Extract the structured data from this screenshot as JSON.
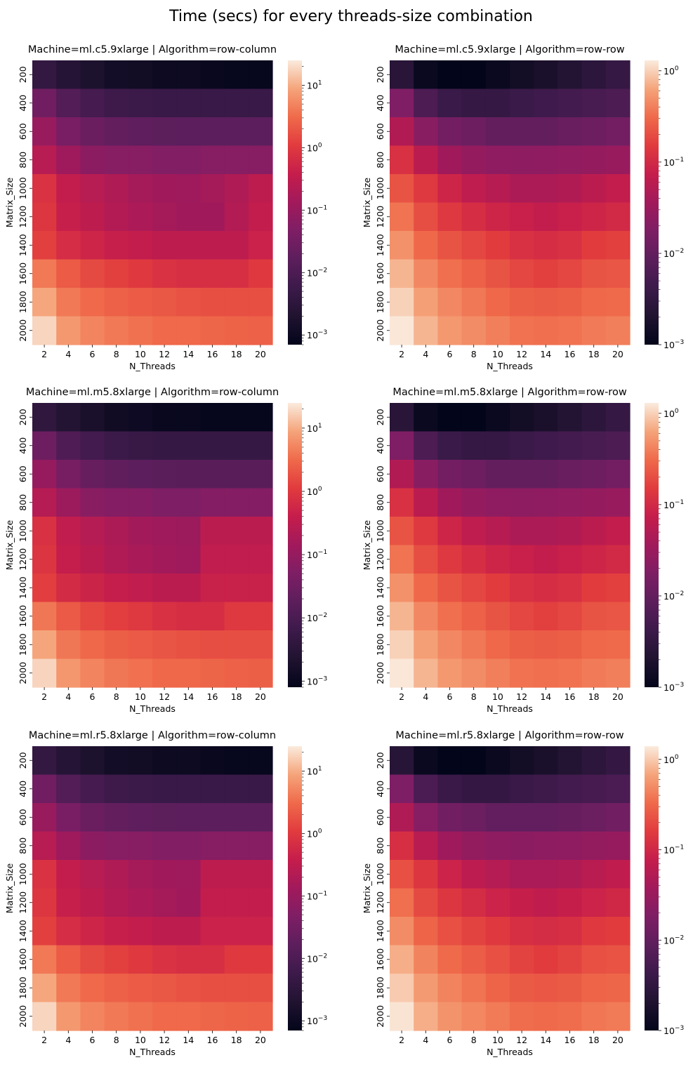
{
  "figure": {
    "suptitle": "Time (secs) for every threads-size combination"
  },
  "chart_data": [
    {
      "type": "heatmap",
      "title": "Machine=ml.c5.9xlarge | Algorithm=row-column",
      "xlabel": "N_Threads",
      "ylabel": "Matrix_Size",
      "x": [
        2,
        4,
        6,
        8,
        10,
        12,
        14,
        16,
        18,
        20
      ],
      "y": [
        200,
        400,
        600,
        800,
        1000,
        1200,
        1400,
        1600,
        1800,
        2000
      ],
      "color_scale": "log",
      "colormap": "rocket",
      "colorbar_range": [
        0.0007,
        25
      ],
      "colorbar_ticks": [
        {
          "value": 0.001,
          "label": "10",
          "exp": "−3"
        },
        {
          "value": 0.01,
          "label": "10",
          "exp": "−2"
        },
        {
          "value": 0.1,
          "label": "10",
          "exp": "−1"
        },
        {
          "value": 1,
          "label": "10",
          "exp": "0"
        },
        {
          "value": 10,
          "label": "10",
          "exp": "1"
        }
      ],
      "values": [
        [
          0.004,
          0.0025,
          0.0018,
          0.0013,
          0.0012,
          0.001,
          0.001,
          0.0009,
          0.0008,
          0.0008
        ],
        [
          0.03,
          0.012,
          0.008,
          0.006,
          0.0055,
          0.005,
          0.005,
          0.005,
          0.005,
          0.005
        ],
        [
          0.1,
          0.04,
          0.025,
          0.02,
          0.018,
          0.017,
          0.016,
          0.016,
          0.016,
          0.016
        ],
        [
          0.25,
          0.12,
          0.07,
          0.06,
          0.06,
          0.05,
          0.05,
          0.06,
          0.06,
          0.06
        ],
        [
          0.8,
          0.35,
          0.25,
          0.2,
          0.15,
          0.13,
          0.12,
          0.15,
          0.2,
          0.3
        ],
        [
          0.9,
          0.4,
          0.3,
          0.22,
          0.18,
          0.15,
          0.13,
          0.13,
          0.22,
          0.35
        ],
        [
          1.2,
          0.65,
          0.5,
          0.4,
          0.35,
          0.3,
          0.3,
          0.3,
          0.3,
          0.45
        ],
        [
          4.0,
          2.2,
          1.5,
          1.2,
          1.0,
          0.8,
          0.7,
          0.7,
          0.7,
          1.0
        ],
        [
          9.0,
          4.0,
          3.0,
          2.5,
          2.2,
          2.0,
          1.8,
          1.7,
          1.7,
          1.7
        ],
        [
          18.0,
          7.0,
          5.0,
          4.0,
          3.5,
          3.0,
          3.0,
          2.8,
          2.6,
          2.5
        ]
      ]
    },
    {
      "type": "heatmap",
      "title": "Machine=ml.c5.9xlarge | Algorithm=row-row",
      "xlabel": "N_Threads",
      "ylabel": "Matrix_Size",
      "x": [
        2,
        4,
        6,
        8,
        10,
        12,
        14,
        16,
        18,
        20
      ],
      "y": [
        200,
        400,
        600,
        800,
        1000,
        1200,
        1400,
        1600,
        1800,
        2000
      ],
      "color_scale": "log",
      "colormap": "rocket",
      "colorbar_range": [
        0.001,
        1.3
      ],
      "colorbar_ticks": [
        {
          "value": 0.001,
          "label": "10",
          "exp": "−3"
        },
        {
          "value": 0.01,
          "label": "10",
          "exp": "−2"
        },
        {
          "value": 0.1,
          "label": "10",
          "exp": "−1"
        },
        {
          "value": 1,
          "label": "10",
          "exp": "0"
        }
      ],
      "values": [
        [
          0.0025,
          0.0012,
          0.001,
          0.001,
          0.0012,
          0.0015,
          0.0018,
          0.0022,
          0.0028,
          0.0035
        ],
        [
          0.018,
          0.006,
          0.004,
          0.0035,
          0.0035,
          0.004,
          0.0045,
          0.005,
          0.0055,
          0.006
        ],
        [
          0.05,
          0.022,
          0.014,
          0.012,
          0.01,
          0.01,
          0.01,
          0.011,
          0.012,
          0.014
        ],
        [
          0.12,
          0.06,
          0.035,
          0.028,
          0.025,
          0.024,
          0.025,
          0.026,
          0.028,
          0.03
        ],
        [
          0.22,
          0.14,
          0.09,
          0.065,
          0.055,
          0.045,
          0.045,
          0.05,
          0.06,
          0.07
        ],
        [
          0.35,
          0.2,
          0.14,
          0.11,
          0.09,
          0.08,
          0.07,
          0.08,
          0.09,
          0.1
        ],
        [
          0.5,
          0.3,
          0.22,
          0.18,
          0.15,
          0.12,
          0.11,
          0.12,
          0.15,
          0.16
        ],
        [
          0.75,
          0.45,
          0.33,
          0.27,
          0.22,
          0.18,
          0.16,
          0.18,
          0.22,
          0.23
        ],
        [
          1.0,
          0.6,
          0.45,
          0.37,
          0.3,
          0.26,
          0.25,
          0.26,
          0.3,
          0.31
        ],
        [
          1.25,
          0.75,
          0.55,
          0.47,
          0.4,
          0.34,
          0.33,
          0.34,
          0.38,
          0.4
        ]
      ]
    },
    {
      "type": "heatmap",
      "title": "Machine=ml.m5.8xlarge | Algorithm=row-column",
      "xlabel": "N_Threads",
      "ylabel": "Matrix_Size",
      "x": [
        2,
        4,
        6,
        8,
        10,
        12,
        14,
        16,
        18,
        20
      ],
      "y": [
        200,
        400,
        600,
        800,
        1000,
        1200,
        1400,
        1600,
        1800,
        2000
      ],
      "color_scale": "log",
      "colormap": "rocket",
      "colorbar_range": [
        0.0008,
        25
      ],
      "colorbar_ticks": [
        {
          "value": 0.001,
          "label": "10",
          "exp": "−3"
        },
        {
          "value": 0.01,
          "label": "10",
          "exp": "−2"
        },
        {
          "value": 0.1,
          "label": "10",
          "exp": "−1"
        },
        {
          "value": 1,
          "label": "10",
          "exp": "0"
        },
        {
          "value": 10,
          "label": "10",
          "exp": "1"
        }
      ],
      "values": [
        [
          0.004,
          0.0025,
          0.0018,
          0.0013,
          0.0012,
          0.001,
          0.001,
          0.0009,
          0.0009,
          0.0009
        ],
        [
          0.03,
          0.012,
          0.008,
          0.006,
          0.0055,
          0.005,
          0.005,
          0.005,
          0.005,
          0.005
        ],
        [
          0.1,
          0.04,
          0.025,
          0.02,
          0.018,
          0.017,
          0.016,
          0.016,
          0.016,
          0.016
        ],
        [
          0.25,
          0.12,
          0.07,
          0.06,
          0.06,
          0.05,
          0.05,
          0.06,
          0.06,
          0.06
        ],
        [
          0.8,
          0.35,
          0.25,
          0.2,
          0.15,
          0.13,
          0.12,
          0.3,
          0.3,
          0.3
        ],
        [
          0.9,
          0.4,
          0.3,
          0.22,
          0.18,
          0.15,
          0.13,
          0.35,
          0.35,
          0.35
        ],
        [
          1.2,
          0.65,
          0.5,
          0.4,
          0.35,
          0.3,
          0.3,
          0.45,
          0.45,
          0.45
        ],
        [
          4.0,
          2.2,
          1.5,
          1.2,
          1.0,
          0.8,
          0.7,
          0.7,
          1.0,
          1.0
        ],
        [
          9.0,
          4.0,
          3.0,
          2.5,
          2.2,
          2.0,
          1.8,
          1.7,
          1.7,
          1.7
        ],
        [
          18.0,
          7.0,
          5.0,
          4.0,
          3.5,
          3.0,
          3.0,
          2.8,
          2.6,
          2.5
        ]
      ]
    },
    {
      "type": "heatmap",
      "title": "Machine=ml.m5.8xlarge | Algorithm=row-row",
      "xlabel": "N_Threads",
      "ylabel": "Matrix_Size",
      "x": [
        2,
        4,
        6,
        8,
        10,
        12,
        14,
        16,
        18,
        20
      ],
      "y": [
        200,
        400,
        600,
        800,
        1000,
        1200,
        1400,
        1600,
        1800,
        2000
      ],
      "color_scale": "log",
      "colormap": "rocket",
      "colorbar_range": [
        0.001,
        1.3
      ],
      "colorbar_ticks": [
        {
          "value": 0.001,
          "label": "10",
          "exp": "−3"
        },
        {
          "value": 0.01,
          "label": "10",
          "exp": "−2"
        },
        {
          "value": 0.1,
          "label": "10",
          "exp": "−1"
        },
        {
          "value": 1,
          "label": "10",
          "exp": "0"
        }
      ],
      "values": [
        [
          0.0025,
          0.0012,
          0.001,
          0.001,
          0.0012,
          0.0015,
          0.0018,
          0.0022,
          0.0028,
          0.0035
        ],
        [
          0.018,
          0.006,
          0.004,
          0.0035,
          0.0035,
          0.004,
          0.0045,
          0.005,
          0.0055,
          0.006
        ],
        [
          0.05,
          0.022,
          0.014,
          0.012,
          0.01,
          0.01,
          0.01,
          0.011,
          0.012,
          0.014
        ],
        [
          0.12,
          0.06,
          0.035,
          0.028,
          0.025,
          0.024,
          0.025,
          0.026,
          0.028,
          0.03
        ],
        [
          0.22,
          0.14,
          0.09,
          0.065,
          0.055,
          0.045,
          0.045,
          0.05,
          0.06,
          0.07
        ],
        [
          0.35,
          0.2,
          0.14,
          0.11,
          0.09,
          0.08,
          0.07,
          0.08,
          0.09,
          0.1
        ],
        [
          0.5,
          0.3,
          0.22,
          0.18,
          0.15,
          0.12,
          0.11,
          0.12,
          0.15,
          0.16
        ],
        [
          0.75,
          0.45,
          0.33,
          0.27,
          0.22,
          0.18,
          0.16,
          0.18,
          0.22,
          0.23
        ],
        [
          1.0,
          0.6,
          0.45,
          0.37,
          0.3,
          0.26,
          0.25,
          0.26,
          0.3,
          0.31
        ],
        [
          1.25,
          0.75,
          0.55,
          0.47,
          0.4,
          0.34,
          0.33,
          0.34,
          0.38,
          0.4
        ]
      ]
    },
    {
      "type": "heatmap",
      "title": "Machine=ml.r5.8xlarge | Algorithm=row-column",
      "xlabel": "N_Threads",
      "ylabel": "Matrix_Size",
      "x": [
        2,
        4,
        6,
        8,
        10,
        12,
        14,
        16,
        18,
        20
      ],
      "y": [
        200,
        400,
        600,
        800,
        1000,
        1200,
        1400,
        1600,
        1800,
        2000
      ],
      "color_scale": "log",
      "colormap": "rocket",
      "colorbar_range": [
        0.0007,
        25
      ],
      "colorbar_ticks": [
        {
          "value": 0.001,
          "label": "10",
          "exp": "−3"
        },
        {
          "value": 0.01,
          "label": "10",
          "exp": "−2"
        },
        {
          "value": 0.1,
          "label": "10",
          "exp": "−1"
        },
        {
          "value": 1,
          "label": "10",
          "exp": "0"
        },
        {
          "value": 10,
          "label": "10",
          "exp": "1"
        }
      ],
      "values": [
        [
          0.004,
          0.0025,
          0.0018,
          0.0013,
          0.0012,
          0.001,
          0.001,
          0.0009,
          0.0008,
          0.0008
        ],
        [
          0.03,
          0.012,
          0.008,
          0.006,
          0.0055,
          0.005,
          0.005,
          0.005,
          0.005,
          0.005
        ],
        [
          0.1,
          0.04,
          0.025,
          0.02,
          0.018,
          0.017,
          0.016,
          0.016,
          0.016,
          0.016
        ],
        [
          0.25,
          0.12,
          0.07,
          0.06,
          0.06,
          0.05,
          0.05,
          0.06,
          0.06,
          0.06
        ],
        [
          0.8,
          0.35,
          0.25,
          0.2,
          0.15,
          0.13,
          0.12,
          0.3,
          0.3,
          0.3
        ],
        [
          0.9,
          0.4,
          0.3,
          0.22,
          0.18,
          0.15,
          0.13,
          0.35,
          0.35,
          0.35
        ],
        [
          1.2,
          0.65,
          0.5,
          0.4,
          0.35,
          0.3,
          0.3,
          0.45,
          0.45,
          0.45
        ],
        [
          4.0,
          2.2,
          1.5,
          1.2,
          1.0,
          0.8,
          0.7,
          0.7,
          1.0,
          1.0
        ],
        [
          9.0,
          4.0,
          3.0,
          2.5,
          2.2,
          2.0,
          1.8,
          1.7,
          1.7,
          1.7
        ],
        [
          18.0,
          7.0,
          5.0,
          4.0,
          3.5,
          3.0,
          3.0,
          2.8,
          2.6,
          2.5
        ]
      ]
    },
    {
      "type": "heatmap",
      "title": "Machine=ml.r5.8xlarge | Algorithm=row-row",
      "xlabel": "N_Threads",
      "ylabel": "Matrix_Size",
      "x": [
        2,
        4,
        6,
        8,
        10,
        12,
        14,
        16,
        18,
        20
      ],
      "y": [
        200,
        400,
        600,
        800,
        1000,
        1200,
        1400,
        1600,
        1800,
        2000
      ],
      "color_scale": "log",
      "colormap": "rocket",
      "colorbar_range": [
        0.001,
        1.4
      ],
      "colorbar_ticks": [
        {
          "value": 0.001,
          "label": "10",
          "exp": "−3"
        },
        {
          "value": 0.01,
          "label": "10",
          "exp": "−2"
        },
        {
          "value": 0.1,
          "label": "10",
          "exp": "−1"
        },
        {
          "value": 1,
          "label": "10",
          "exp": "0"
        }
      ],
      "values": [
        [
          0.0025,
          0.0012,
          0.001,
          0.001,
          0.0012,
          0.0015,
          0.0018,
          0.0022,
          0.0028,
          0.0035
        ],
        [
          0.018,
          0.006,
          0.004,
          0.0035,
          0.0035,
          0.004,
          0.0045,
          0.005,
          0.0055,
          0.006
        ],
        [
          0.05,
          0.022,
          0.014,
          0.012,
          0.01,
          0.01,
          0.01,
          0.011,
          0.012,
          0.014
        ],
        [
          0.12,
          0.06,
          0.035,
          0.028,
          0.025,
          0.024,
          0.025,
          0.026,
          0.028,
          0.03
        ],
        [
          0.22,
          0.14,
          0.09,
          0.065,
          0.055,
          0.045,
          0.045,
          0.05,
          0.06,
          0.07
        ],
        [
          0.35,
          0.2,
          0.14,
          0.11,
          0.09,
          0.08,
          0.07,
          0.08,
          0.09,
          0.1
        ],
        [
          0.5,
          0.3,
          0.22,
          0.18,
          0.15,
          0.12,
          0.11,
          0.12,
          0.15,
          0.16
        ],
        [
          0.75,
          0.45,
          0.33,
          0.27,
          0.22,
          0.18,
          0.16,
          0.18,
          0.22,
          0.23
        ],
        [
          1.0,
          0.6,
          0.45,
          0.37,
          0.3,
          0.26,
          0.25,
          0.26,
          0.3,
          0.31
        ],
        [
          1.3,
          0.75,
          0.55,
          0.47,
          0.4,
          0.34,
          0.33,
          0.34,
          0.38,
          0.4
        ]
      ]
    }
  ]
}
